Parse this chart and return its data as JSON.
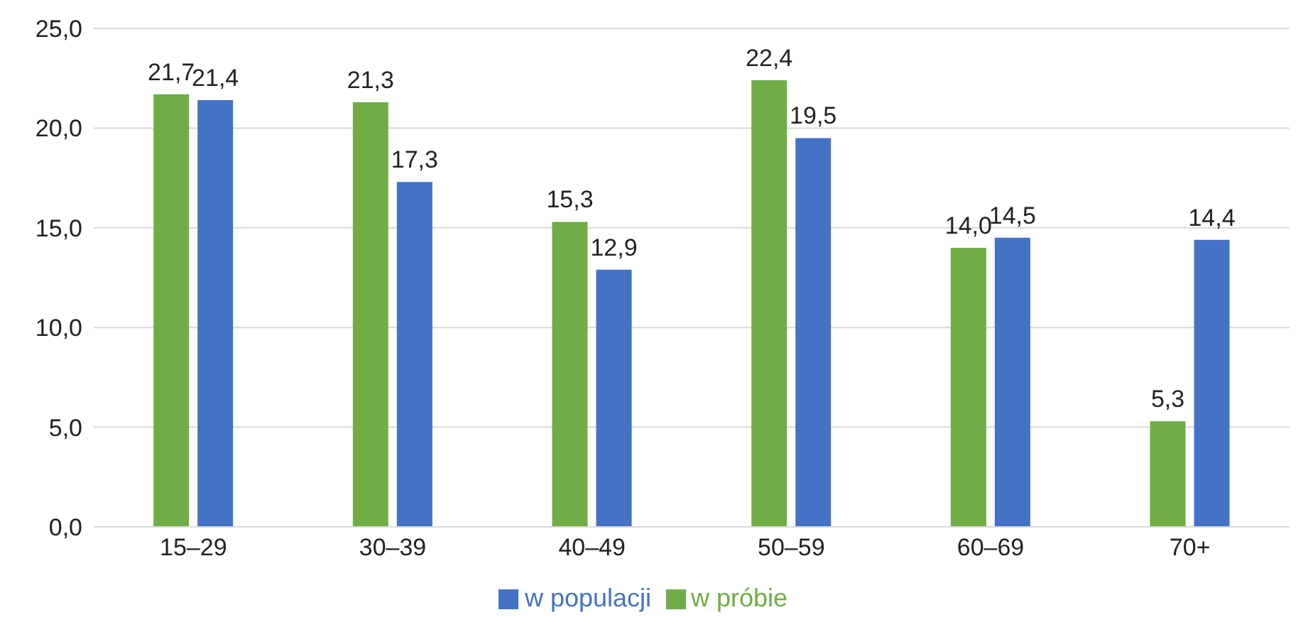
{
  "chart_data": {
    "type": "bar",
    "categories": [
      "15–29",
      "30–39",
      "40–49",
      "50–59",
      "60–69",
      "70+"
    ],
    "series": [
      {
        "name": "w próbie",
        "color": "#70ad47",
        "values": [
          21.7,
          21.3,
          15.3,
          22.4,
          14.0,
          5.3
        ],
        "value_labels": [
          "21,7",
          "21,3",
          "15,3",
          "22,4",
          "14,0",
          "5,3"
        ]
      },
      {
        "name": "w populacji",
        "color": "#4472c4",
        "values": [
          21.4,
          17.3,
          12.9,
          19.5,
          14.5,
          14.4
        ],
        "value_labels": [
          "21,4",
          "17,3",
          "12,9",
          "19,5",
          "14,5",
          "14,4"
        ]
      }
    ],
    "ylim": [
      0,
      25
    ],
    "yticks": [
      {
        "value": 0,
        "label": "0,0"
      },
      {
        "value": 5,
        "label": "5,0"
      },
      {
        "value": 10,
        "label": "10,0"
      },
      {
        "value": 15,
        "label": "15,0"
      },
      {
        "value": 20,
        "label": "20,0"
      },
      {
        "value": 25,
        "label": "25,0"
      }
    ],
    "grid": "y",
    "legend": "bottom"
  }
}
